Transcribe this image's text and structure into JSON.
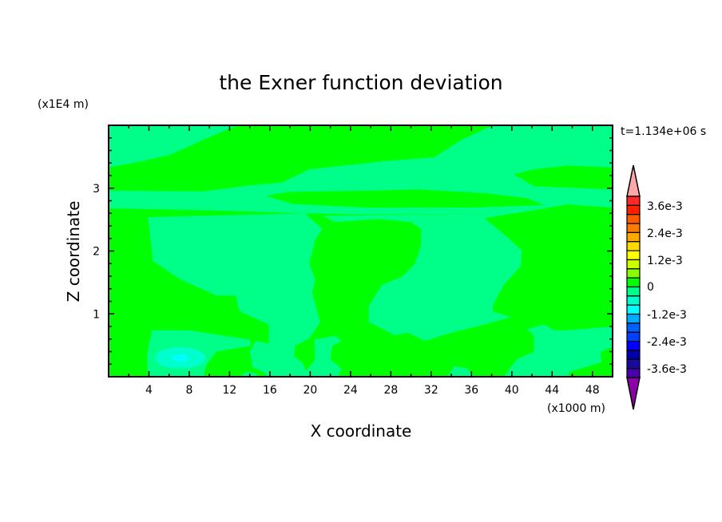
{
  "chart_data": {
    "type": "heatmap",
    "subtype": "filled-contour",
    "title": "the Exner function deviation",
    "xlabel": "X coordinate",
    "ylabel": "Z coordinate",
    "x_unit": "(x1000 m)",
    "y_unit": "(x1E4 m)",
    "time_label": "t=1.134e+06 s",
    "xlim": [
      0,
      50
    ],
    "ylim": [
      0,
      4
    ],
    "x_ticks": [
      "4",
      "8",
      "12",
      "16",
      "20",
      "24",
      "28",
      "32",
      "36",
      "40",
      "44",
      "48"
    ],
    "y_ticks": [
      "1",
      "2",
      "3"
    ],
    "grid": false,
    "colorbar": {
      "placement": "right",
      "labels": [
        "3.6e-3",
        "2.4e-3",
        "1.2e-3",
        "0",
        "-1.2e-3",
        "-2.4e-3",
        "-3.6e-3"
      ],
      "top_extend_color": "#ffa8a8",
      "bottom_extend_color": "#8c00a8",
      "band_colors": [
        "#ff2828",
        "#ff2000",
        "#ff5a00",
        "#ff7a00",
        "#ffa800",
        "#ffd800",
        "#ffff00",
        "#ccff00",
        "#88ff00",
        "#00ff00",
        "#00ff88",
        "#00ffcc",
        "#00ffff",
        "#00aaff",
        "#0060ff",
        "#0040ff",
        "#0000ff",
        "#0000a8",
        "#1a08a0",
        "#4800a8"
      ]
    },
    "background_color": "#00ff00",
    "regions": [
      {
        "color": "#00ff88",
        "points": [
          [
            0,
            4
          ],
          [
            12.8,
            4
          ],
          [
            9.4,
            3.77
          ],
          [
            6.1,
            3.53
          ],
          [
            2.8,
            3.41
          ],
          [
            0,
            3.33
          ]
        ]
      },
      {
        "color": "#00ff88",
        "points": [
          [
            0,
            2.96
          ],
          [
            9.4,
            2.95
          ],
          [
            14.3,
            3.05
          ],
          [
            17.2,
            3.09
          ],
          [
            19.9,
            3.3
          ],
          [
            27.4,
            3.43
          ],
          [
            32.3,
            3.49
          ],
          [
            35,
            3.77
          ],
          [
            38.1,
            4
          ],
          [
            50,
            4
          ],
          [
            50,
            2.69
          ],
          [
            45.5,
            2.74
          ],
          [
            40.4,
            2.6
          ],
          [
            25.8,
            2.58
          ],
          [
            19.2,
            2.6
          ],
          [
            9.4,
            2.65
          ],
          [
            0,
            2.68
          ]
        ]
      },
      {
        "color": "#00ff00",
        "points": [
          [
            15.6,
            2.88
          ],
          [
            17.9,
            2.94
          ],
          [
            25.8,
            2.96
          ],
          [
            30.7,
            2.98
          ],
          [
            37.3,
            2.92
          ],
          [
            41.5,
            2.84
          ],
          [
            43.2,
            2.73
          ],
          [
            35.6,
            2.69
          ],
          [
            25.8,
            2.69
          ],
          [
            18.2,
            2.75
          ]
        ]
      },
      {
        "color": "#00ff00",
        "points": [
          [
            40.2,
            3.22
          ],
          [
            42.2,
            3.3
          ],
          [
            45.5,
            3.36
          ],
          [
            50,
            3.33
          ],
          [
            50,
            2.98
          ],
          [
            42.2,
            3.03
          ]
        ]
      },
      {
        "color": "#00ff88",
        "points": [
          [
            3.9,
            2.54
          ],
          [
            19.5,
            2.6
          ],
          [
            21.2,
            2.35
          ],
          [
            20.5,
            2.18
          ],
          [
            19.9,
            1.8
          ],
          [
            20.5,
            1.55
          ],
          [
            20.2,
            1.33
          ],
          [
            21,
            0.87
          ],
          [
            19.9,
            0.61
          ],
          [
            18.5,
            0.49
          ],
          [
            18.4,
            0.32
          ],
          [
            19.2,
            0.23
          ],
          [
            19.9,
            0
          ],
          [
            15.9,
            0
          ],
          [
            15.3,
            0.08
          ],
          [
            14.3,
            0.15
          ],
          [
            14,
            0.4
          ],
          [
            14.6,
            0.57
          ],
          [
            15.9,
            0.53
          ],
          [
            15.9,
            0.83
          ],
          [
            13,
            1.04
          ],
          [
            12.6,
            1.29
          ],
          [
            10.7,
            1.29
          ],
          [
            7.1,
            1.55
          ],
          [
            4.4,
            1.84
          ]
        ]
      },
      {
        "color": "#00ff88",
        "points": [
          [
            4.3,
            0.74
          ],
          [
            8,
            0.74
          ],
          [
            10.3,
            0.68
          ],
          [
            14,
            0.59
          ],
          [
            14.1,
            0.49
          ],
          [
            10.7,
            0.4
          ],
          [
            9.7,
            0.19
          ],
          [
            9.4,
            0
          ],
          [
            3.9,
            0
          ],
          [
            3.8,
            0.36
          ]
        ]
      },
      {
        "color": "#00ff88",
        "points": [
          [
            20.4,
            0.59
          ],
          [
            22.5,
            0.65
          ],
          [
            23.1,
            0.57
          ],
          [
            22.2,
            0.49
          ],
          [
            22,
            0.28
          ],
          [
            23.1,
            0.13
          ],
          [
            22.8,
            0
          ],
          [
            19.2,
            0
          ],
          [
            20.5,
            0.28
          ]
        ]
      },
      {
        "color": "#00ff88",
        "points": [
          [
            21.2,
            2.56
          ],
          [
            40.2,
            2.6
          ],
          [
            37.3,
            2.52
          ],
          [
            38.9,
            2.31
          ],
          [
            41,
            2.01
          ],
          [
            40.9,
            1.76
          ],
          [
            39.2,
            1.46
          ],
          [
            38.2,
            1.16
          ],
          [
            38.1,
            1.04
          ],
          [
            39.9,
            0.95
          ],
          [
            37.3,
            0.83
          ],
          [
            34,
            0.7
          ],
          [
            31.4,
            0.57
          ],
          [
            29.7,
            0.7
          ],
          [
            28.4,
            0.66
          ],
          [
            25.8,
            0.87
          ],
          [
            25.8,
            1.12
          ],
          [
            27.1,
            1.46
          ],
          [
            29.1,
            1.59
          ],
          [
            30.4,
            1.8
          ],
          [
            31,
            2.1
          ],
          [
            31,
            2.35
          ],
          [
            30,
            2.46
          ],
          [
            26.8,
            2.51
          ],
          [
            22.5,
            2.46
          ]
        ]
      },
      {
        "color": "#00ff88",
        "points": [
          [
            41.5,
            0.76
          ],
          [
            43.2,
            0.83
          ],
          [
            44.2,
            0.74
          ],
          [
            45.5,
            0.74
          ],
          [
            50,
            0.8
          ],
          [
            50,
            0.47
          ],
          [
            48.8,
            0.4
          ],
          [
            48.9,
            0.23
          ],
          [
            45.8,
            0.08
          ],
          [
            45.5,
            0
          ],
          [
            39.2,
            0
          ],
          [
            40.5,
            0.28
          ],
          [
            42.2,
            0.4
          ],
          [
            42.2,
            0.66
          ]
        ]
      },
      {
        "color": "#00ff88",
        "points": [
          [
            33.6,
            0
          ],
          [
            34.3,
            0.17
          ],
          [
            35.6,
            0.13
          ],
          [
            36.3,
            0
          ]
        ]
      },
      {
        "color": "#00ff88",
        "points": [
          [
            13.1,
            0
          ],
          [
            13.6,
            0.08
          ],
          [
            14.6,
            0.06
          ],
          [
            14.8,
            0
          ]
        ]
      }
    ],
    "spots": [
      {
        "color": "#00ffcc",
        "center": [
          7.1,
          0.3
        ],
        "radii": [
          2.5,
          0.17
        ]
      },
      {
        "color": "#00ffff",
        "center": [
          7.1,
          0.3
        ],
        "radii": [
          0.8,
          0.06
        ]
      }
    ]
  }
}
